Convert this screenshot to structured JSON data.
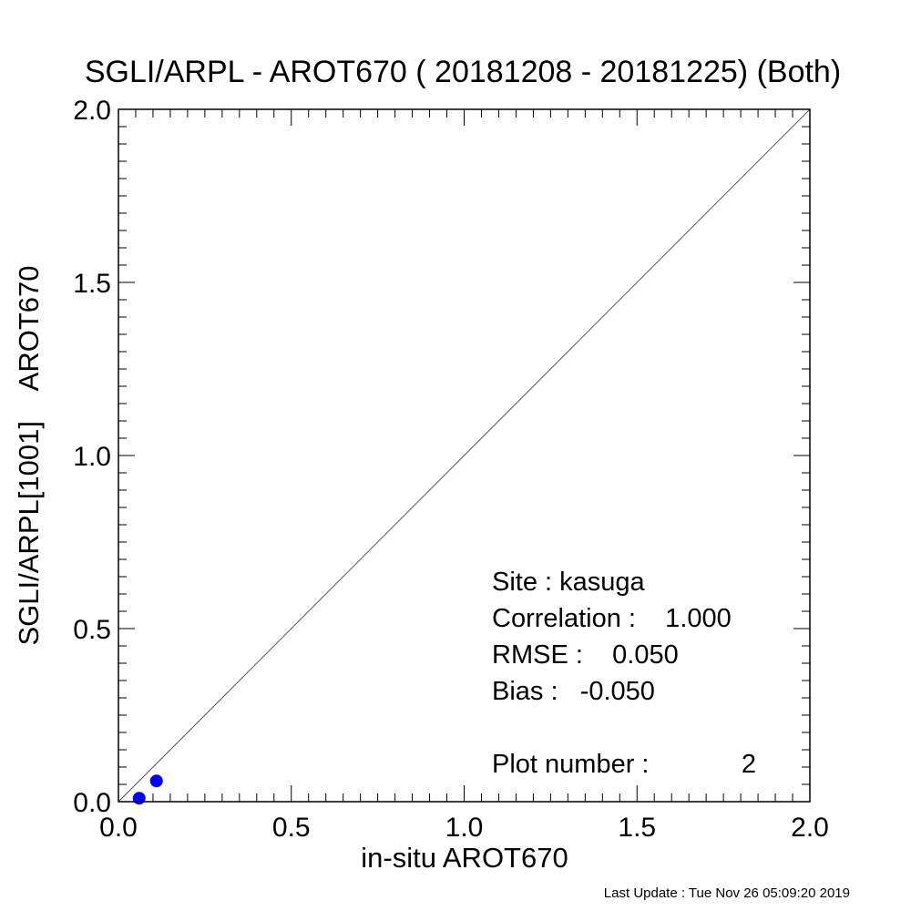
{
  "chart_data": {
    "type": "scatter",
    "title": "SGLI/ARPL - AROT670 ( 20181208 - 20181225) (Both)",
    "xlabel": "in-situ AROT670",
    "ylabel": "SGLI/ARPL[1001]    AROT670",
    "xlim": [
      0.0,
      2.0
    ],
    "ylim": [
      0.0,
      2.0
    ],
    "xticks": [
      "0.0",
      "0.5",
      "1.0",
      "1.5",
      "2.0"
    ],
    "yticks": [
      "0.0",
      "0.5",
      "1.0",
      "1.5",
      "2.0"
    ],
    "grid": false,
    "reference_line": "1:1",
    "point_color": "#0000ff",
    "points": [
      {
        "x": 0.06,
        "y": 0.01
      },
      {
        "x": 0.11,
        "y": 0.06
      }
    ],
    "stats": {
      "site": "Site : kasuga",
      "correlation": "Correlation :    1.000",
      "rmse": "RMSE :    0.050",
      "bias": "Bias :   -0.050",
      "plot_number": "Plot number :",
      "plot_number_value": "2"
    }
  },
  "footer": {
    "last_update": "Last Update : Tue Nov 26 05:09:20 2019"
  }
}
